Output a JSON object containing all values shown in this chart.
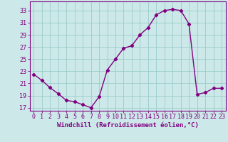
{
  "x": [
    0,
    1,
    2,
    3,
    4,
    5,
    6,
    7,
    8,
    9,
    10,
    11,
    12,
    13,
    14,
    15,
    16,
    17,
    18,
    19,
    20,
    21,
    22,
    23
  ],
  "y": [
    22.5,
    21.5,
    20.3,
    19.3,
    18.2,
    18.0,
    17.5,
    17.0,
    18.8,
    23.2,
    25.0,
    26.8,
    27.2,
    29.0,
    30.2,
    32.3,
    33.0,
    33.2,
    33.0,
    30.8,
    19.2,
    19.5,
    20.2,
    20.2
  ],
  "line_color": "#800080",
  "marker": "D",
  "marker_size": 2.2,
  "bg_color": "#cce8e8",
  "grid_color": "#99cccc",
  "xlabel": "Windchill (Refroidissement éolien,°C)",
  "xlabel_fontsize": 6.5,
  "xtick_labels": [
    "0",
    "1",
    "2",
    "3",
    "4",
    "5",
    "6",
    "7",
    "8",
    "9",
    "10",
    "11",
    "12",
    "13",
    "14",
    "15",
    "16",
    "17",
    "18",
    "19",
    "20",
    "21",
    "22",
    "23"
  ],
  "ytick_labels": [
    "17",
    "19",
    "21",
    "23",
    "25",
    "27",
    "29",
    "31",
    "33"
  ],
  "ytick_vals": [
    17,
    19,
    21,
    23,
    25,
    27,
    29,
    31,
    33
  ],
  "ylim": [
    16.5,
    34.5
  ],
  "xlim": [
    -0.5,
    23.5
  ],
  "tick_color": "#800080",
  "tick_fontsize": 6.0,
  "line_width": 1.0
}
